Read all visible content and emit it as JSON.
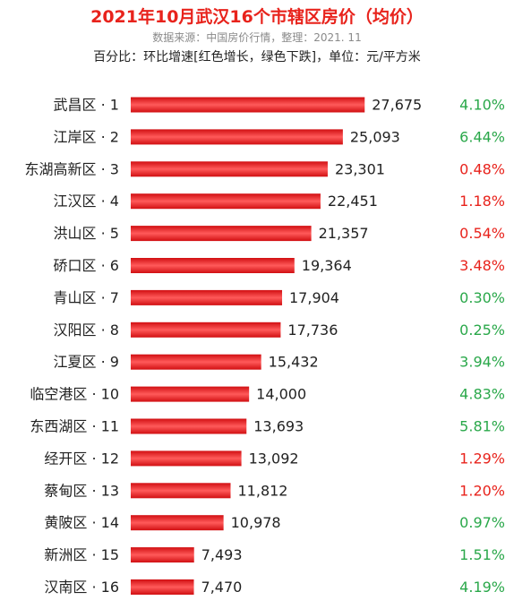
{
  "header": {
    "title": "2021年10月武汉16个市辖区房价（均价）",
    "source": "数据来源：中国房价行情，整理：2021. 11",
    "note": "百分比：环比增速[红色增长，绿色下跌]，单位：元/平方米"
  },
  "colors": {
    "bar_dark": "#d10f12",
    "bar_light": "#ff5a5a",
    "increase": "#e8231c",
    "decrease": "#2aa84a",
    "title": "#e8231c"
  },
  "chart_data": {
    "type": "bar",
    "orientation": "horizontal",
    "categories": [
      "武昌区 · 1",
      "江岸区 · 2",
      "东湖高新区 · 3",
      "江汉区 · 4",
      "洪山区 · 5",
      "硚口区 · 6",
      "青山区 · 7",
      "汉阳区 · 8",
      "江夏区 · 9",
      "临空港区 · 10",
      "东西湖区 · 11",
      "经开区 · 12",
      "蔡甸区 · 13",
      "黄陂区 · 14",
      "新洲区 · 15",
      "汉南区 · 16"
    ],
    "values": [
      27675,
      25093,
      23301,
      22451,
      21357,
      19364,
      17904,
      17736,
      15432,
      14000,
      13693,
      13092,
      11812,
      10978,
      7493,
      7470
    ],
    "value_labels": [
      "27,675",
      "25,093",
      "23,301",
      "22,451",
      "21,357",
      "19,364",
      "17,904",
      "17,736",
      "15,432",
      "14,000",
      "13,693",
      "13,092",
      "11,812",
      "10,978",
      "7,493",
      "7,470"
    ],
    "pct_labels": [
      "4.10%",
      "6.44%",
      "0.48%",
      "1.18%",
      "0.54%",
      "3.48%",
      "0.30%",
      "0.25%",
      "3.94%",
      "4.83%",
      "5.81%",
      "1.29%",
      "1.20%",
      "0.97%",
      "1.51%",
      "4.19%"
    ],
    "pct_colors": [
      "#2aa84a",
      "#2aa84a",
      "#e8231c",
      "#e8231c",
      "#e8231c",
      "#e8231c",
      "#2aa84a",
      "#2aa84a",
      "#2aa84a",
      "#2aa84a",
      "#2aa84a",
      "#e8231c",
      "#e8231c",
      "#2aa84a",
      "#2aa84a",
      "#2aa84a"
    ],
    "xlim": [
      0,
      30000
    ],
    "grid": false,
    "legend": "none"
  }
}
